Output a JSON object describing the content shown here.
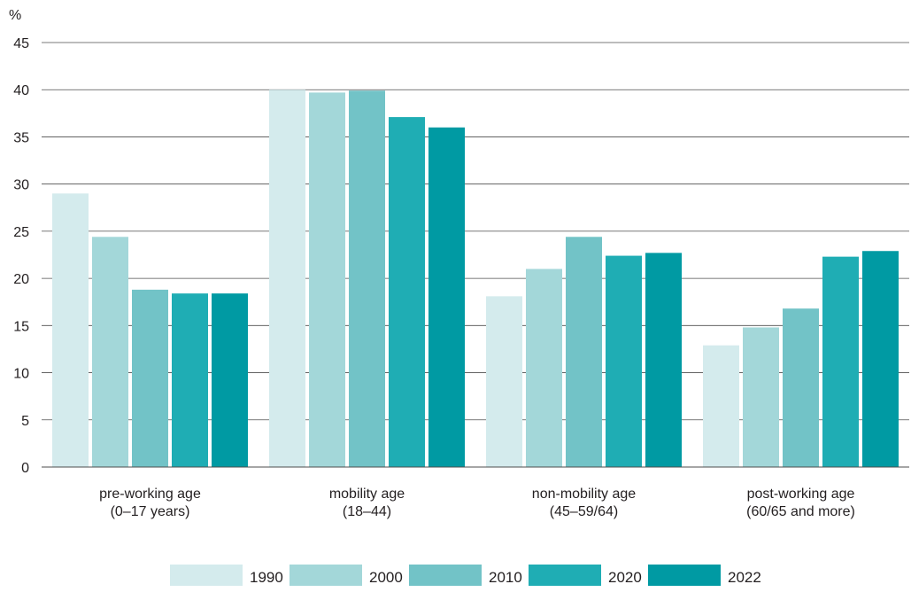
{
  "chart_data": {
    "type": "bar",
    "ylabel": "%",
    "ylim": [
      0,
      45
    ],
    "yticks": [
      0,
      5,
      10,
      15,
      20,
      25,
      30,
      35,
      40,
      45
    ],
    "grid": true,
    "legend_position": "bottom",
    "categories": [
      [
        "pre-working age",
        "(0–17 years)"
      ],
      [
        "mobility age",
        "(18–44)"
      ],
      [
        "non-mobility age",
        "(45–59/64)"
      ],
      [
        "post-working age",
        "(60/65 and more)"
      ]
    ],
    "series": [
      {
        "name": "1990",
        "color": "#d4ebed",
        "values": [
          29.0,
          40.0,
          18.1,
          12.9
        ]
      },
      {
        "name": "2000",
        "color": "#a3d7d9",
        "values": [
          24.4,
          39.7,
          21.0,
          14.8
        ]
      },
      {
        "name": "2010",
        "color": "#72c3c7",
        "values": [
          18.8,
          39.9,
          24.4,
          16.8
        ]
      },
      {
        "name": "2020",
        "color": "#1fadb4",
        "values": [
          18.4,
          37.1,
          22.4,
          22.3
        ]
      },
      {
        "name": "2022",
        "color": "#009aa3",
        "values": [
          18.4,
          36.0,
          22.7,
          22.9
        ]
      }
    ]
  }
}
